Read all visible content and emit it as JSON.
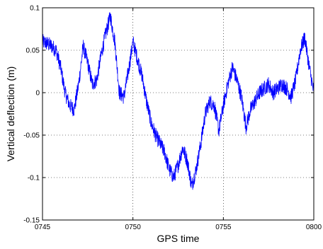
{
  "chart_data": {
    "type": "line",
    "title": "",
    "xlabel": "GPS time",
    "ylabel": "Vertical deflection (m)",
    "x_tick_labels": [
      "0745",
      "0750",
      "0755",
      "0800"
    ],
    "x_tick_values": [
      0,
      5,
      10,
      15
    ],
    "xlim": [
      0,
      15
    ],
    "y_tick_labels": [
      "-0.15",
      "-0.1",
      "-0.05",
      "0",
      "0.05",
      "0.1"
    ],
    "y_tick_values": [
      -0.15,
      -0.1,
      -0.05,
      0,
      0.05,
      0.1
    ],
    "ylim": [
      -0.15,
      0.1
    ],
    "grid": "dotted",
    "series": [
      {
        "color": "#0000ff",
        "x": [
          0,
          0.25,
          0.5,
          0.75,
          1.0,
          1.25,
          1.5,
          1.75,
          2.0,
          2.25,
          2.5,
          2.75,
          3.0,
          3.25,
          3.5,
          3.75,
          4.0,
          4.25,
          4.5,
          4.75,
          5.0,
          5.25,
          5.5,
          5.75,
          6.0,
          6.25,
          6.5,
          6.75,
          7.0,
          7.25,
          7.5,
          7.75,
          8.0,
          8.25,
          8.5,
          8.75,
          9.0,
          9.25,
          9.5,
          9.75,
          10.0,
          10.25,
          10.5,
          10.75,
          11.0,
          11.25,
          11.5,
          11.75,
          12.0,
          12.25,
          12.5,
          12.75,
          13.0,
          13.25,
          13.5,
          13.75,
          14.0,
          14.25,
          14.5,
          14.75,
          15.0
        ],
        "y": [
          0.06,
          0.058,
          0.055,
          0.05,
          0.03,
          0.0,
          -0.015,
          -0.02,
          0.01,
          0.055,
          0.035,
          0.01,
          0.015,
          0.045,
          0.07,
          0.09,
          0.06,
          0.0,
          -0.005,
          0.025,
          0.06,
          0.04,
          0.02,
          -0.01,
          -0.035,
          -0.05,
          -0.06,
          -0.07,
          -0.09,
          -0.1,
          -0.085,
          -0.065,
          -0.08,
          -0.11,
          -0.09,
          -0.06,
          -0.025,
          -0.01,
          -0.015,
          -0.045,
          -0.015,
          0.01,
          0.03,
          0.015,
          -0.005,
          -0.04,
          -0.02,
          -0.01,
          0.0,
          0.005,
          0.01,
          0.0,
          0.005,
          0.01,
          0.005,
          -0.005,
          0.015,
          0.05,
          0.065,
          0.03,
          0.0
        ]
      }
    ]
  }
}
